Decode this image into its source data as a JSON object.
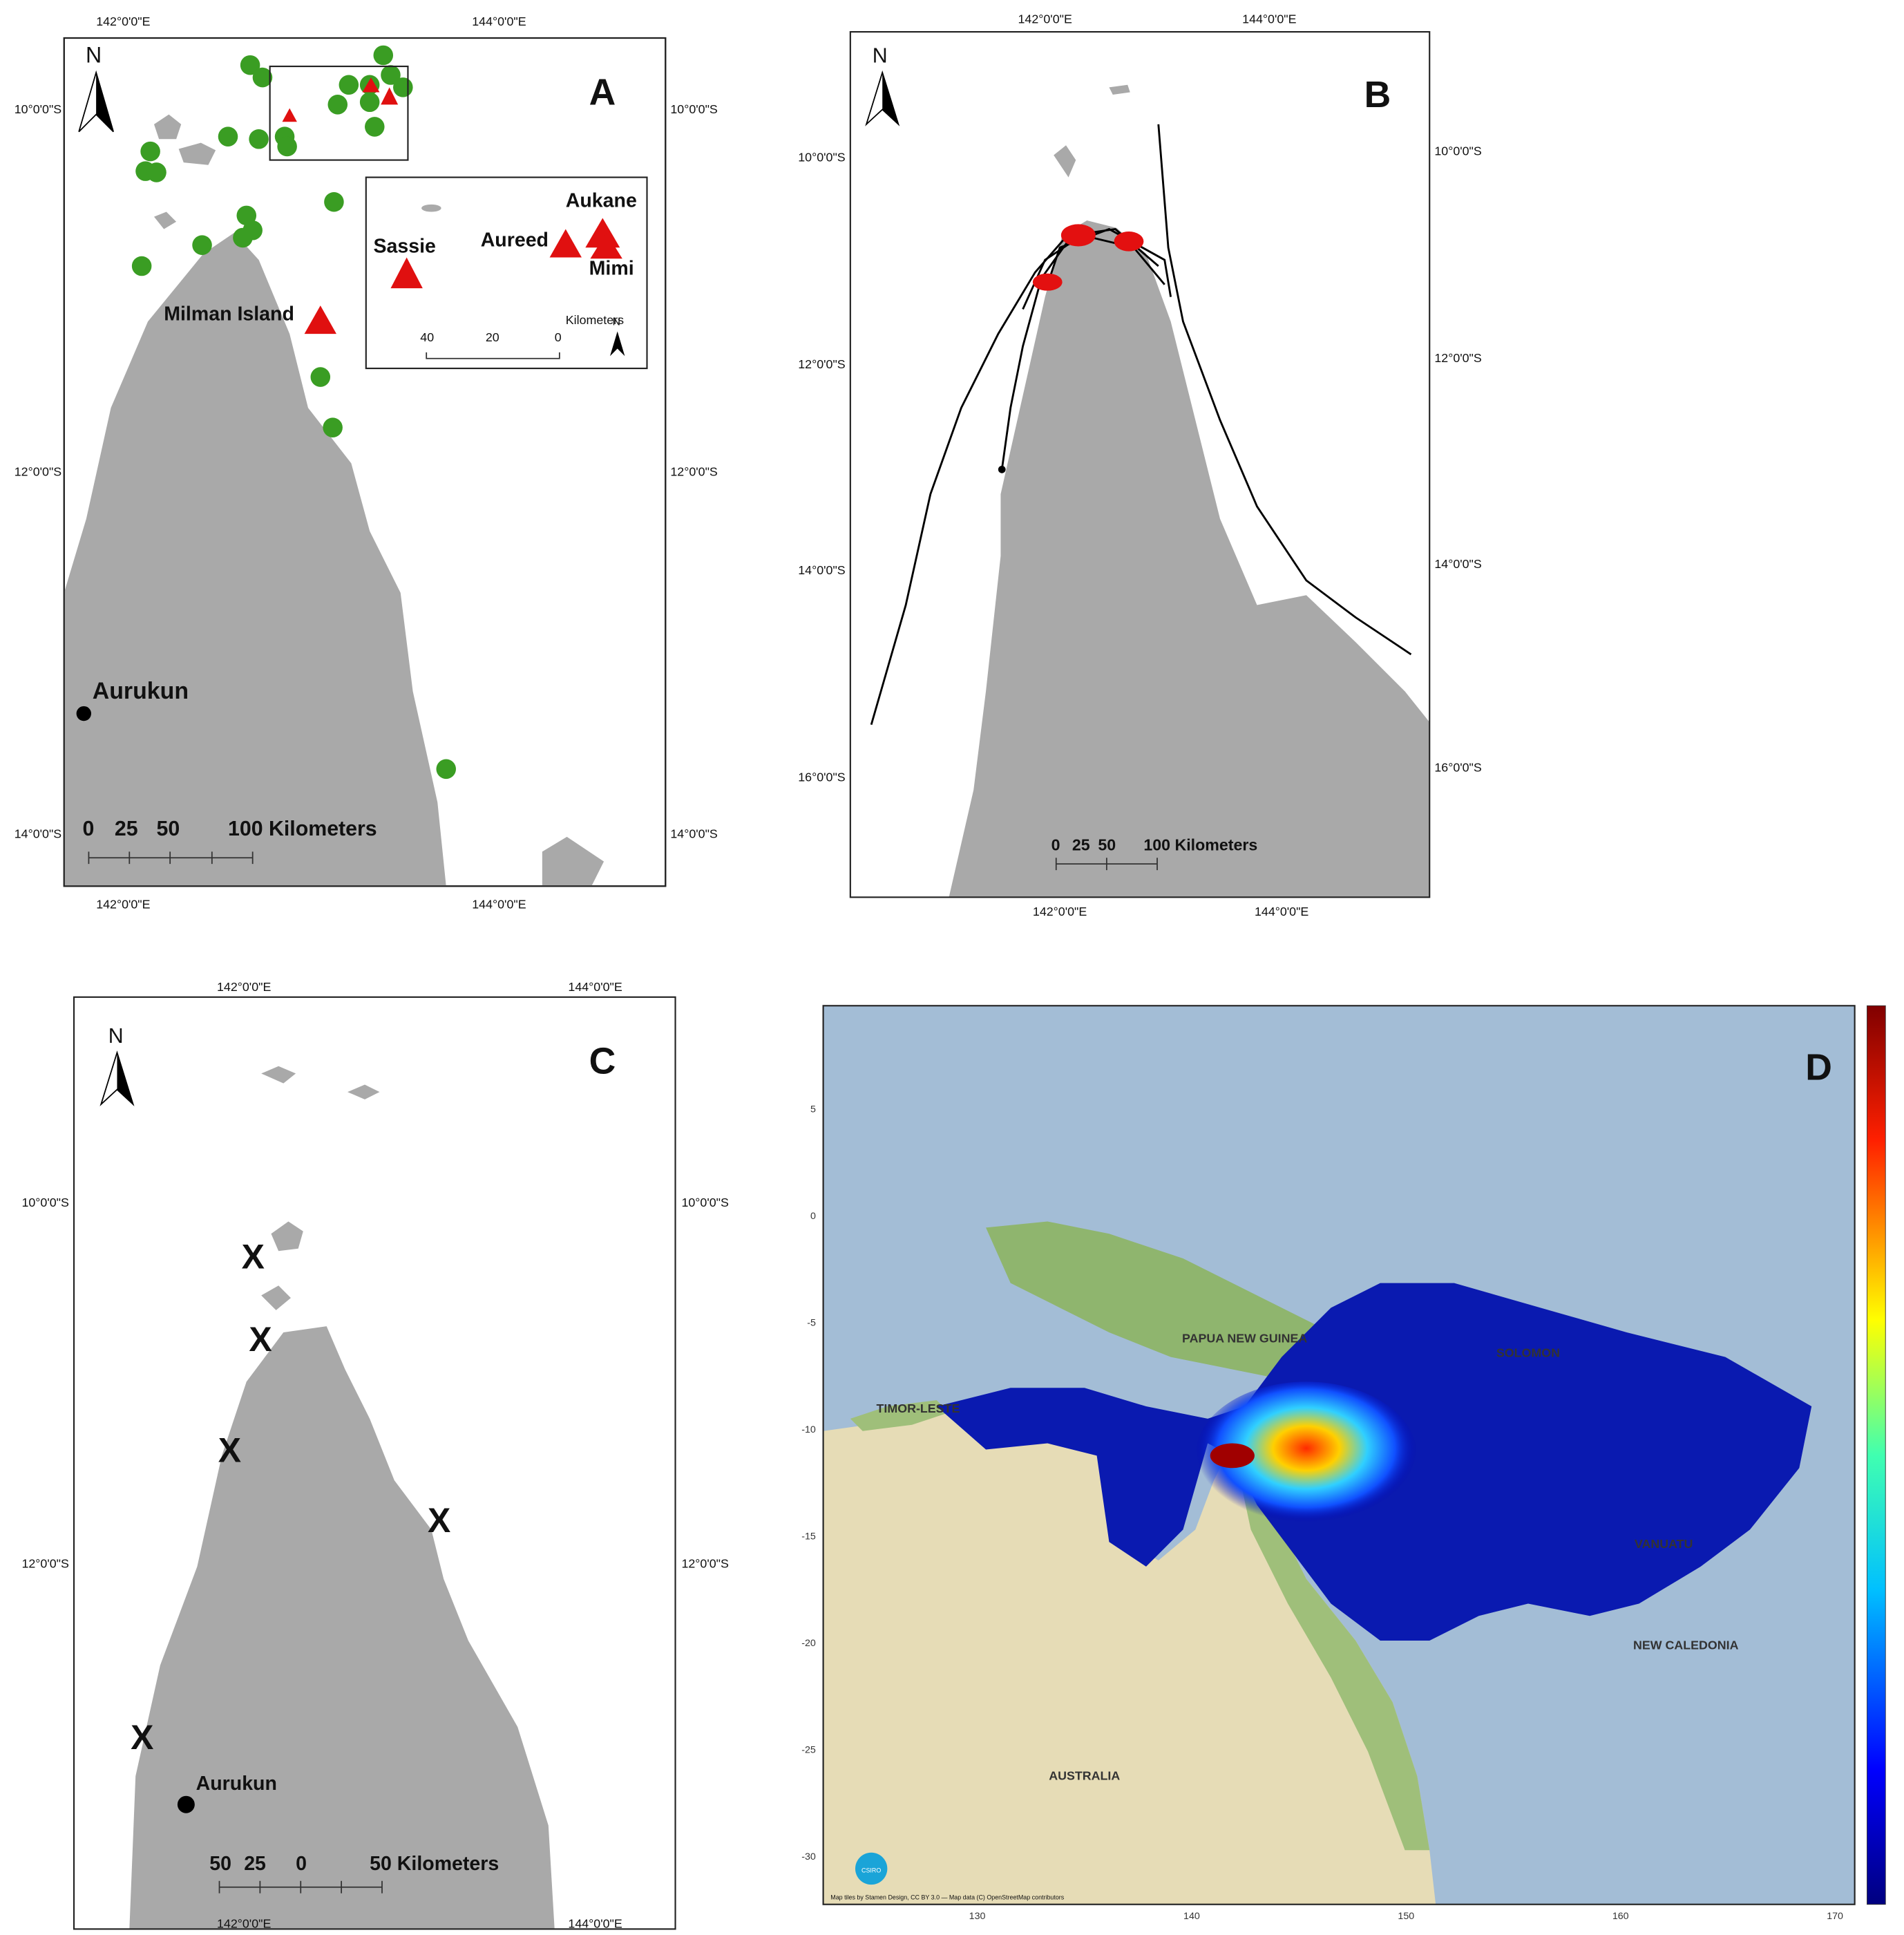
{
  "panel_a": {
    "label": "A",
    "north": "N",
    "lon_labels": [
      "142°0'0\"E",
      "144°0'0\"E"
    ],
    "lat_labels": [
      "10°0'0\"S",
      "12°0'0\"S",
      "14°0'0\"S"
    ],
    "places": [
      "Milman Island",
      "Aurukun"
    ],
    "scale_labels": [
      "0",
      "25",
      "50",
      "100 Kilometers"
    ],
    "inset": {
      "sites": [
        "Sassie",
        "Aureed",
        "Aukane",
        "Mimi"
      ],
      "scale_labels": [
        "40",
        "20",
        "0"
      ],
      "units": "Kilometers",
      "north": "N"
    }
  },
  "panel_b": {
    "label": "B",
    "north": "N",
    "lon_labels": [
      "142°0'0\"E",
      "144°0'0\"E"
    ],
    "lat_labels": [
      "10°0'0\"S",
      "12°0'0\"S",
      "14°0'0\"S",
      "16°0'0\"S"
    ],
    "scale_labels": [
      "0",
      "25",
      "50",
      "100 Kilometers"
    ]
  },
  "panel_c": {
    "label": "C",
    "north": "N",
    "lon_labels": [
      "142°0'0\"E",
      "144°0'0\"E"
    ],
    "lat_labels": [
      "10°0'0\"S",
      "12°0'0\"S"
    ],
    "site_marker": "X",
    "places": [
      "Aurukun"
    ],
    "scale_labels": [
      "50",
      "25",
      "0",
      "50 Kilometers"
    ]
  },
  "panel_d": {
    "label": "D",
    "xticks": [
      130,
      140,
      150,
      160,
      170
    ],
    "yticks": [
      5,
      0,
      -5,
      -10,
      -15,
      -20,
      -25,
      -30
    ],
    "countries": [
      "PAPUA NEW GUINEA",
      "TIMOR-LESTE",
      "AUSTRALIA",
      "VANUATU",
      "NEW CALEDONIA",
      "SOLOMON"
    ],
    "attribution": "Map tiles by Stamen Design, CC BY 3.0 — Map data (C) OpenStreetMap contributors",
    "logo": "CSIRO"
  }
}
